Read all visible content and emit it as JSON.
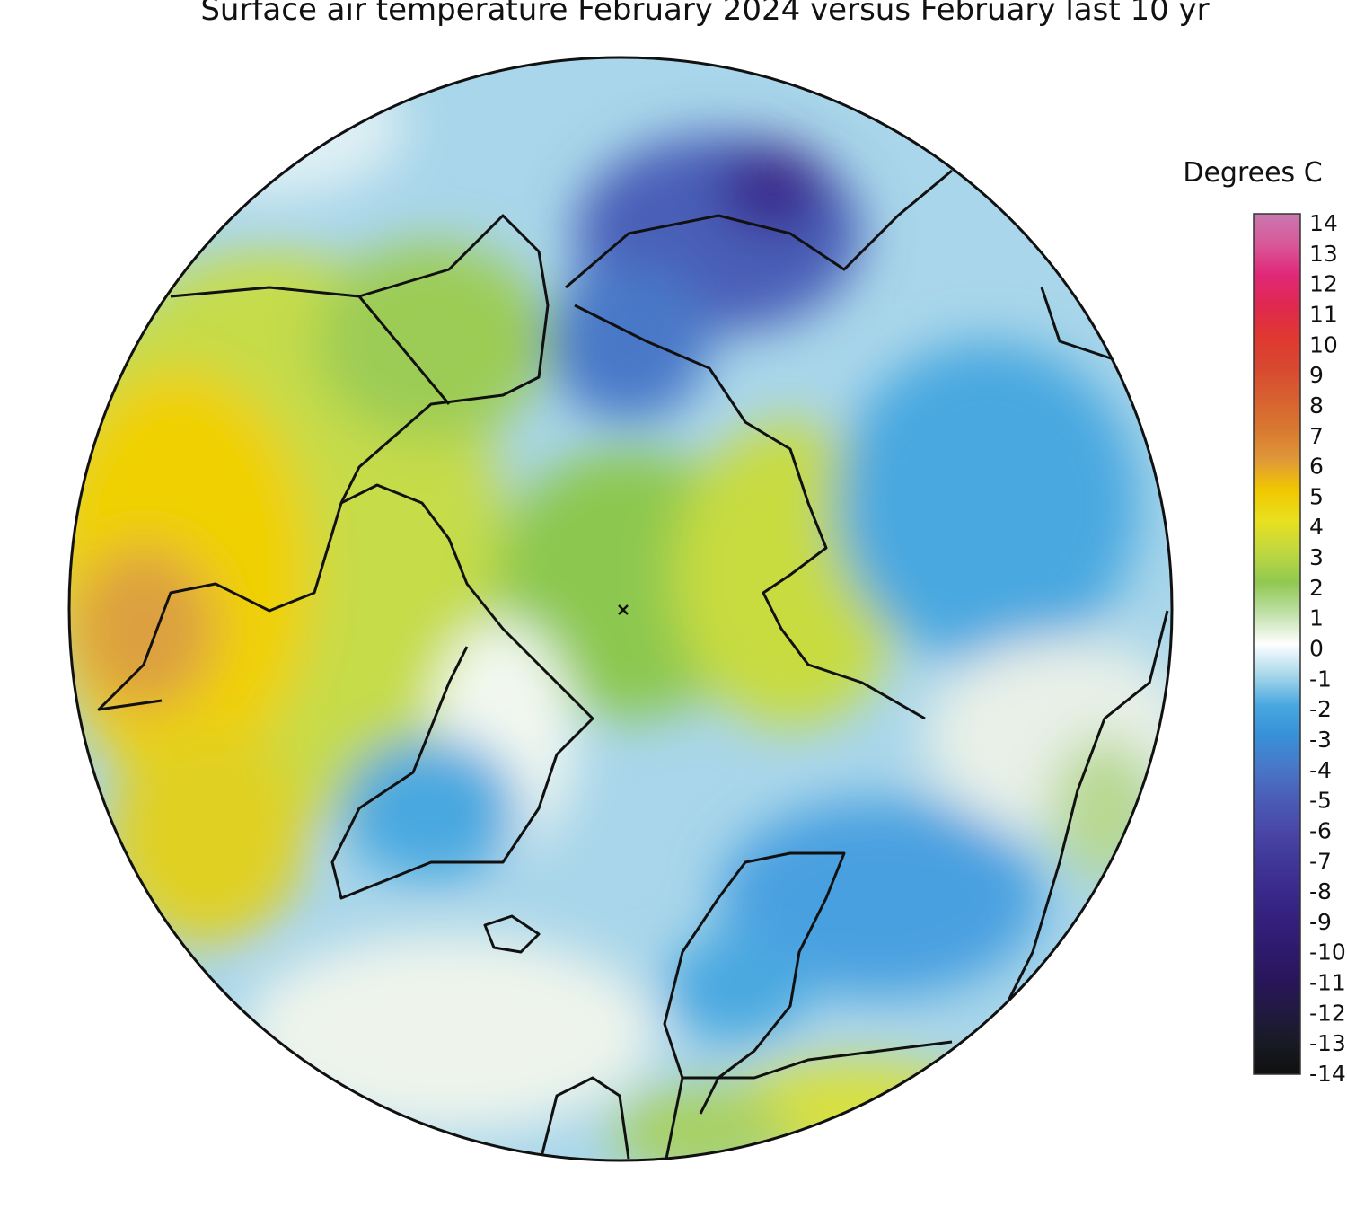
{
  "title": "Surface air temperature February 2024 versus February last 10 yr",
  "colorbar": {
    "label": "Degrees C",
    "ticks": [
      14,
      13,
      12,
      11,
      10,
      9,
      8,
      7,
      6,
      5,
      4,
      3,
      2,
      1,
      0,
      -1,
      -2,
      -3,
      -4,
      -5,
      -6,
      -7,
      -8,
      -9,
      -10,
      -11,
      -12,
      -13,
      -14
    ],
    "colors": [
      "#c878b0",
      "#d85898",
      "#e02878",
      "#e02850",
      "#e03830",
      "#d84830",
      "#d86030",
      "#d87830",
      "#e09838",
      "#f0c800",
      "#e8e020",
      "#c0d840",
      "#90c850",
      "#c0e0a8",
      "#ffffff",
      "#a8d8ea",
      "#48a8e0",
      "#3890d8",
      "#4878c8",
      "#4a5eb8",
      "#4a48a8",
      "#40389a",
      "#3a2a8c",
      "#34207c",
      "#2e1a6c",
      "#28165a",
      "#201a40",
      "#181a24",
      "#101010"
    ]
  }
}
